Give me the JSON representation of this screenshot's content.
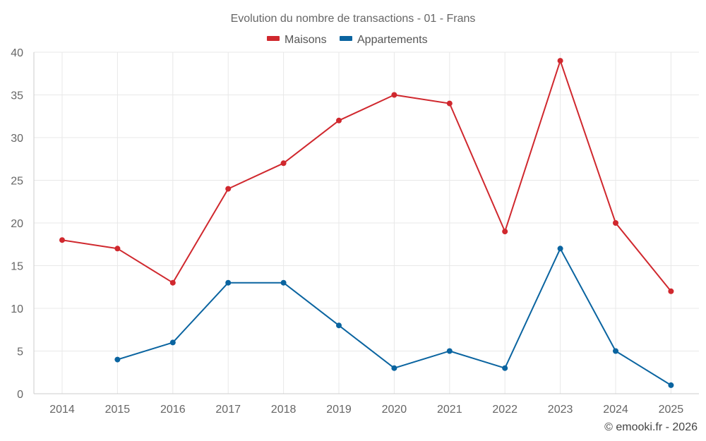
{
  "chart_data": {
    "type": "line",
    "title": "Evolution du nombre de transactions - 01 - Frans",
    "categories": [
      "2014",
      "2015",
      "2016",
      "2017",
      "2018",
      "2019",
      "2020",
      "2021",
      "2022",
      "2023",
      "2024",
      "2025"
    ],
    "series": [
      {
        "name": "Maisons",
        "color": "#d0282e",
        "values": [
          18,
          17,
          13,
          24,
          27,
          32,
          35,
          34,
          19,
          39,
          20,
          12
        ]
      },
      {
        "name": "Appartements",
        "color": "#0a64a0",
        "values": [
          null,
          4,
          6,
          13,
          13,
          8,
          3,
          5,
          3,
          17,
          5,
          1
        ]
      }
    ],
    "ylim": [
      0,
      40
    ],
    "yticks": [
      0,
      5,
      10,
      15,
      20,
      25,
      30,
      35,
      40
    ],
    "xlabel": "",
    "ylabel": "",
    "grid": true,
    "legend_position": "top-center"
  },
  "credit": "© emooki.fr - 2026"
}
